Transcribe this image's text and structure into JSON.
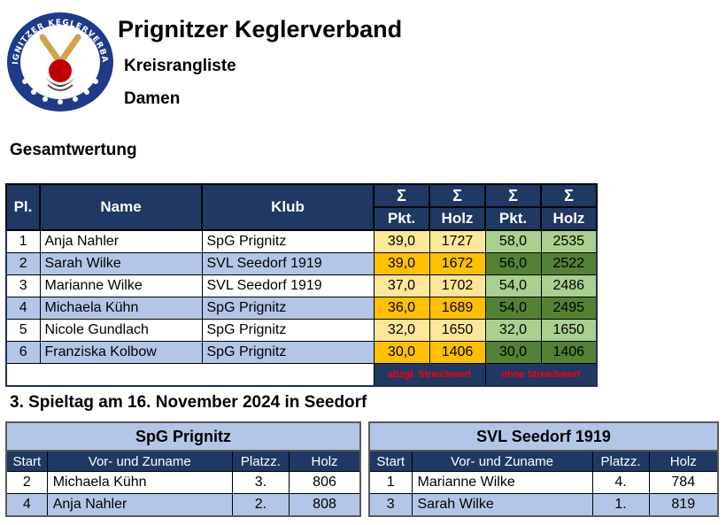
{
  "header": {
    "title": "Prignitzer Keglerverband",
    "subtitle": "Kreisrangliste",
    "category": "Damen",
    "logo_text": "PRIGNITZER KEGLERVERBAND"
  },
  "ranking": {
    "section_title": "Gesamtwertung",
    "columns": {
      "place": "Pl.",
      "name": "Name",
      "club": "Klub",
      "sigma": "Σ",
      "points": "Pkt.",
      "wood": "Holz"
    },
    "rows": [
      {
        "place": "1",
        "name": "Anja Nahler",
        "club": "SpG Prignitz",
        "pts_a": "39,0",
        "holz_a": "1727",
        "pts_b": "58,0",
        "holz_b": "2535"
      },
      {
        "place": "2",
        "name": "Sarah Wilke",
        "club": "SVL Seedorf 1919",
        "pts_a": "39,0",
        "holz_a": "1672",
        "pts_b": "56,0",
        "holz_b": "2522"
      },
      {
        "place": "3",
        "name": "Marianne Wilke",
        "club": "SVL Seedorf 1919",
        "pts_a": "37,0",
        "holz_a": "1702",
        "pts_b": "54,0",
        "holz_b": "2486"
      },
      {
        "place": "4",
        "name": "Michaela Kühn",
        "club": "SpG Prignitz",
        "pts_a": "36,0",
        "holz_a": "1689",
        "pts_b": "54,0",
        "holz_b": "2495"
      },
      {
        "place": "5",
        "name": "Nicole Gundlach",
        "club": "SpG Prignitz",
        "pts_a": "32,0",
        "holz_a": "1650",
        "pts_b": "32,0",
        "holz_b": "1650"
      },
      {
        "place": "6",
        "name": "Franziska Kolbow",
        "club": "SpG Prignitz",
        "pts_a": "30,0",
        "holz_a": "1406",
        "pts_b": "30,0",
        "holz_b": "1406"
      }
    ],
    "footer_a": "abzgl. Streichwert",
    "footer_b": "ohne Streichwert"
  },
  "matchday": {
    "title": "3. Spieltag am 16. November 2024 in Seedorf",
    "columns": {
      "start": "Start",
      "name": "Vor- und Zuname",
      "place": "Platzz.",
      "wood": "Holz"
    },
    "teams": [
      {
        "name": "SpG Prignitz",
        "rows": [
          {
            "start": "2",
            "name": "Michaela Kühn",
            "place": "3.",
            "wood": "806"
          },
          {
            "start": "4",
            "name": "Anja Nahler",
            "place": "2.",
            "wood": "808"
          }
        ]
      },
      {
        "name": "SVL Seedorf 1919",
        "rows": [
          {
            "start": "1",
            "name": "Marianne Wilke",
            "place": "4.",
            "wood": "784"
          },
          {
            "start": "3",
            "name": "Sarah Wilke",
            "place": "1.",
            "wood": "819"
          }
        ]
      }
    ]
  }
}
